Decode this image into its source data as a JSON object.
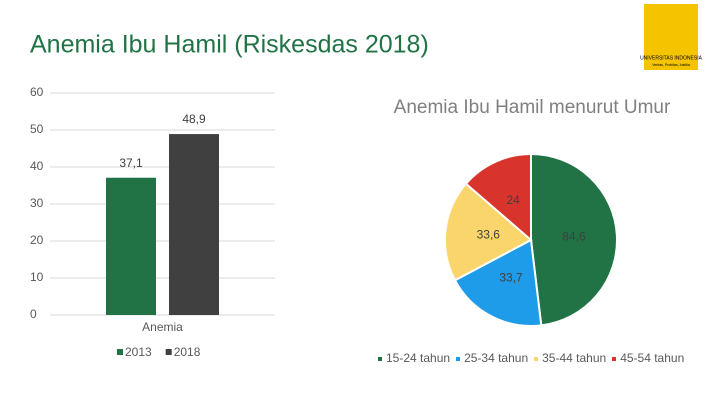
{
  "slide": {
    "title": "Anemia Ibu Hamil (Riskesdas 2018)"
  },
  "logo": {
    "name": "UNIVERSITAS INDONESIA",
    "motto": "Veritas, Probitas, Iustitia"
  },
  "chart_data": [
    {
      "type": "bar",
      "categories": [
        "Anemia"
      ],
      "series": [
        {
          "name": "2013",
          "color": "#217346",
          "values": [
            37.1
          ],
          "value_labels": [
            "37,1"
          ]
        },
        {
          "name": "2018",
          "color": "#404040",
          "values": [
            48.9
          ],
          "value_labels": [
            "48,9"
          ]
        }
      ],
      "ylim": [
        0,
        60
      ],
      "yticks": [
        0,
        10,
        20,
        30,
        40,
        50,
        60
      ],
      "grid": true,
      "legend": "bottom"
    },
    {
      "type": "pie",
      "title": "Anemia Ibu Hamil menurut Umur",
      "categories": [
        "15-24 tahun",
        "25-34 tahun",
        "35-44 tahun",
        "45-54 tahun"
      ],
      "values": [
        84.6,
        33.7,
        33.6,
        24
      ],
      "value_labels": [
        "84,6",
        "33,7",
        "33,6",
        "24"
      ],
      "colors": [
        "#217346",
        "#1e9be9",
        "#fad56b",
        "#d9342b"
      ],
      "legend": "bottom"
    }
  ]
}
